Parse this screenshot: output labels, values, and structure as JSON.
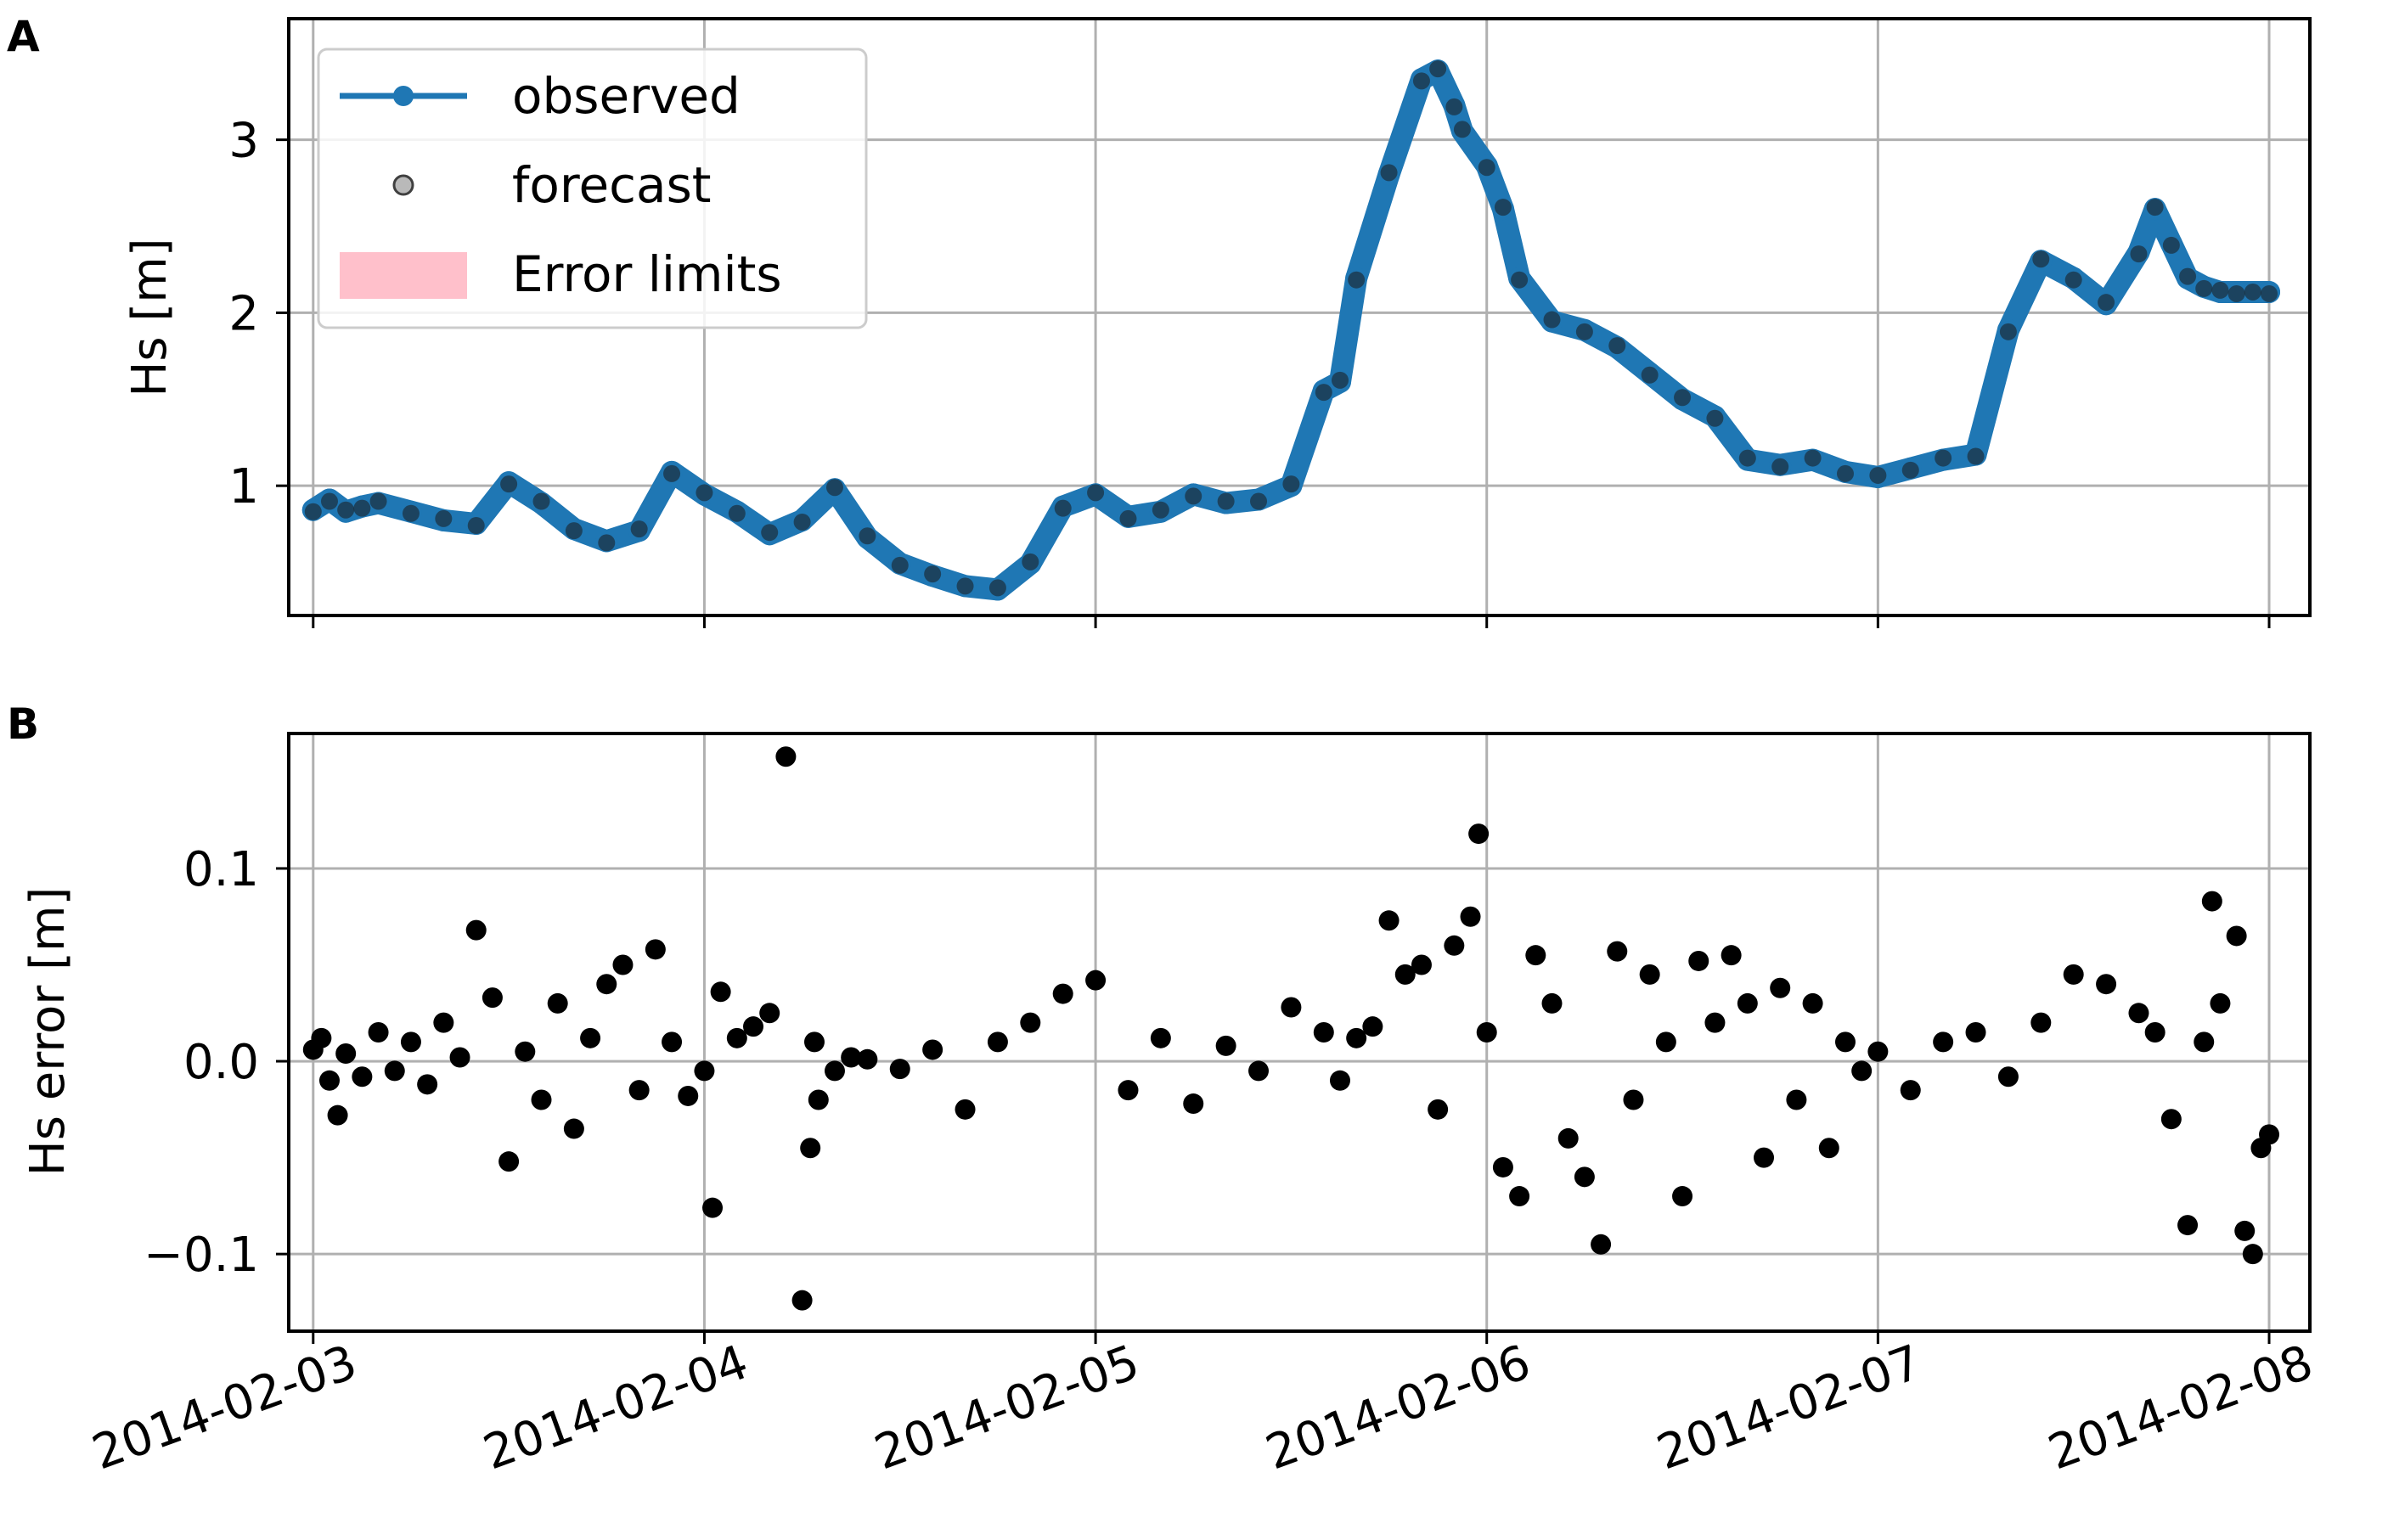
{
  "chart_data": [
    {
      "panel_label": "A",
      "type": "line",
      "ylabel": "Hs [m]",
      "xlim": [
        "2014-02-02 22:30",
        "2014-02-08 02:30"
      ],
      "ylim": [
        0.25,
        3.7
      ],
      "yticks": [
        1,
        2,
        3
      ],
      "ytick_labels": [
        "1",
        "2",
        "3"
      ],
      "grid": true,
      "legend": {
        "placement": "top-left",
        "entries": [
          {
            "label": "observed",
            "style": "line-marker",
            "color": "#1f77b4"
          },
          {
            "label": "forecast",
            "style": "marker",
            "color": "#808080"
          },
          {
            "label": "Error limits",
            "style": "patch",
            "color": "#ffc0cb"
          }
        ]
      },
      "x": [
        "2014-02-03 00:00",
        "2014-02-03 01:00",
        "2014-02-03 02:00",
        "2014-02-03 03:00",
        "2014-02-03 04:00",
        "2014-02-03 06:00",
        "2014-02-03 08:00",
        "2014-02-03 10:00",
        "2014-02-03 12:00",
        "2014-02-03 14:00",
        "2014-02-03 16:00",
        "2014-02-03 18:00",
        "2014-02-03 20:00",
        "2014-02-03 22:00",
        "2014-02-04 00:00",
        "2014-02-04 02:00",
        "2014-02-04 04:00",
        "2014-02-04 06:00",
        "2014-02-04 08:00",
        "2014-02-04 10:00",
        "2014-02-04 12:00",
        "2014-02-04 14:00",
        "2014-02-04 16:00",
        "2014-02-04 18:00",
        "2014-02-04 20:00",
        "2014-02-04 22:00",
        "2014-02-05 00:00",
        "2014-02-05 02:00",
        "2014-02-05 04:00",
        "2014-02-05 06:00",
        "2014-02-05 08:00",
        "2014-02-05 10:00",
        "2014-02-05 12:00",
        "2014-02-05 14:00",
        "2014-02-05 15:00",
        "2014-02-05 16:00",
        "2014-02-05 18:00",
        "2014-02-05 20:00",
        "2014-02-05 21:00",
        "2014-02-05 22:00",
        "2014-02-05 22:30",
        "2014-02-06 00:00",
        "2014-02-06 01:00",
        "2014-02-06 02:00",
        "2014-02-06 04:00",
        "2014-02-06 06:00",
        "2014-02-06 08:00",
        "2014-02-06 10:00",
        "2014-02-06 12:00",
        "2014-02-06 14:00",
        "2014-02-06 16:00",
        "2014-02-06 18:00",
        "2014-02-06 20:00",
        "2014-02-06 22:00",
        "2014-02-07 00:00",
        "2014-02-07 02:00",
        "2014-02-07 04:00",
        "2014-02-07 06:00",
        "2014-02-07 08:00",
        "2014-02-07 10:00",
        "2014-02-07 12:00",
        "2014-02-07 14:00",
        "2014-02-07 16:00",
        "2014-02-07 17:00",
        "2014-02-07 18:00",
        "2014-02-07 19:00",
        "2014-02-07 20:00",
        "2014-02-07 21:00",
        "2014-02-07 22:00",
        "2014-02-07 23:00",
        "2014-02-08 00:00"
      ],
      "series": [
        {
          "name": "observed",
          "color": "#1f77b4",
          "values": [
            0.86,
            0.92,
            0.85,
            0.88,
            0.9,
            0.85,
            0.8,
            0.78,
            1.02,
            0.9,
            0.75,
            0.68,
            0.74,
            1.08,
            0.95,
            0.85,
            0.72,
            0.8,
            0.98,
            0.7,
            0.55,
            0.48,
            0.42,
            0.4,
            0.55,
            0.88,
            0.95,
            0.82,
            0.85,
            0.95,
            0.9,
            0.92,
            1.0,
            1.55,
            1.6,
            2.2,
            2.8,
            3.35,
            3.4,
            3.2,
            3.05,
            2.85,
            2.6,
            2.2,
            1.95,
            1.9,
            1.8,
            1.65,
            1.5,
            1.4,
            1.15,
            1.12,
            1.15,
            1.08,
            1.05,
            1.1,
            1.15,
            1.18,
            1.9,
            2.3,
            2.2,
            2.05,
            2.35,
            2.6,
            2.4,
            2.2,
            2.15,
            2.12,
            2.12,
            2.12,
            2.12
          ]
        },
        {
          "name": "forecast",
          "color": "#808080",
          "values": [
            0.85,
            0.91,
            0.86,
            0.87,
            0.91,
            0.84,
            0.81,
            0.77,
            1.01,
            0.91,
            0.74,
            0.67,
            0.75,
            1.07,
            0.96,
            0.84,
            0.73,
            0.79,
            0.99,
            0.71,
            0.54,
            0.49,
            0.42,
            0.41,
            0.56,
            0.87,
            0.96,
            0.81,
            0.86,
            0.94,
            0.91,
            0.91,
            1.01,
            1.54,
            1.61,
            2.19,
            2.81,
            3.34,
            3.41,
            3.19,
            3.06,
            2.84,
            2.61,
            2.19,
            1.96,
            1.89,
            1.81,
            1.64,
            1.51,
            1.39,
            1.16,
            1.11,
            1.16,
            1.07,
            1.06,
            1.09,
            1.16,
            1.17,
            1.89,
            2.31,
            2.19,
            2.06,
            2.34,
            2.61,
            2.39,
            2.21,
            2.14,
            2.13,
            2.11,
            2.12,
            2.11
          ]
        }
      ]
    },
    {
      "panel_label": "B",
      "type": "scatter",
      "ylabel": "Hs error [m]",
      "xlim": [
        "2014-02-02 22:30",
        "2014-02-08 02:30"
      ],
      "ylim": [
        -0.14,
        0.17
      ],
      "yticks": [
        -0.1,
        0.0,
        0.1
      ],
      "ytick_labels": [
        "−0.1",
        "0.0",
        "0.1"
      ],
      "xticks": [
        "2014-02-03",
        "2014-02-04",
        "2014-02-05",
        "2014-02-06",
        "2014-02-07",
        "2014-02-08"
      ],
      "xtick_labels": [
        "2014-02-03",
        "2014-02-04",
        "2014-02-05",
        "2014-02-06",
        "2014-02-07",
        "2014-02-08"
      ],
      "grid": true,
      "series": [
        {
          "name": "",
          "color": "#000000",
          "x": [
            "2014-02-03 00:00",
            "2014-02-03 00:30",
            "2014-02-03 01:00",
            "2014-02-03 01:30",
            "2014-02-03 02:00",
            "2014-02-03 03:00",
            "2014-02-03 04:00",
            "2014-02-03 05:00",
            "2014-02-03 06:00",
            "2014-02-03 07:00",
            "2014-02-03 08:00",
            "2014-02-03 09:00",
            "2014-02-03 10:00",
            "2014-02-03 11:00",
            "2014-02-03 12:00",
            "2014-02-03 13:00",
            "2014-02-03 14:00",
            "2014-02-03 15:00",
            "2014-02-03 16:00",
            "2014-02-03 17:00",
            "2014-02-03 18:00",
            "2014-02-03 19:00",
            "2014-02-03 20:00",
            "2014-02-03 21:00",
            "2014-02-03 22:00",
            "2014-02-03 23:00",
            "2014-02-04 00:00",
            "2014-02-04 00:30",
            "2014-02-04 01:00",
            "2014-02-04 02:00",
            "2014-02-04 03:00",
            "2014-02-04 04:00",
            "2014-02-04 05:00",
            "2014-02-04 06:00",
            "2014-02-04 06:30",
            "2014-02-04 06:45",
            "2014-02-04 07:00",
            "2014-02-04 08:00",
            "2014-02-04 09:00",
            "2014-02-04 10:00",
            "2014-02-04 12:00",
            "2014-02-04 14:00",
            "2014-02-04 16:00",
            "2014-02-04 18:00",
            "2014-02-04 20:00",
            "2014-02-04 22:00",
            "2014-02-05 00:00",
            "2014-02-05 02:00",
            "2014-02-05 04:00",
            "2014-02-05 06:00",
            "2014-02-05 08:00",
            "2014-02-05 10:00",
            "2014-02-05 12:00",
            "2014-02-05 14:00",
            "2014-02-05 15:00",
            "2014-02-05 16:00",
            "2014-02-05 17:00",
            "2014-02-05 18:00",
            "2014-02-05 19:00",
            "2014-02-05 20:00",
            "2014-02-05 21:00",
            "2014-02-05 22:00",
            "2014-02-05 23:00",
            "2014-02-05 23:30",
            "2014-02-06 00:00",
            "2014-02-06 01:00",
            "2014-02-06 02:00",
            "2014-02-06 03:00",
            "2014-02-06 04:00",
            "2014-02-06 05:00",
            "2014-02-06 06:00",
            "2014-02-06 07:00",
            "2014-02-06 08:00",
            "2014-02-06 09:00",
            "2014-02-06 10:00",
            "2014-02-06 11:00",
            "2014-02-06 12:00",
            "2014-02-06 13:00",
            "2014-02-06 14:00",
            "2014-02-06 15:00",
            "2014-02-06 16:00",
            "2014-02-06 17:00",
            "2014-02-06 18:00",
            "2014-02-06 19:00",
            "2014-02-06 20:00",
            "2014-02-06 21:00",
            "2014-02-06 22:00",
            "2014-02-06 23:00",
            "2014-02-07 00:00",
            "2014-02-07 02:00",
            "2014-02-07 04:00",
            "2014-02-07 06:00",
            "2014-02-07 08:00",
            "2014-02-07 10:00",
            "2014-02-07 12:00",
            "2014-02-07 14:00",
            "2014-02-07 16:00",
            "2014-02-07 17:00",
            "2014-02-07 18:00",
            "2014-02-07 19:00",
            "2014-02-07 20:00",
            "2014-02-07 20:30",
            "2014-02-07 21:00",
            "2014-02-07 22:00",
            "2014-02-07 22:30",
            "2014-02-07 23:00",
            "2014-02-07 23:30",
            "2014-02-08 00:00"
          ],
          "y": [
            0.006,
            0.012,
            -0.01,
            -0.028,
            0.004,
            -0.008,
            0.015,
            -0.005,
            0.01,
            -0.012,
            0.02,
            0.002,
            0.068,
            0.033,
            -0.052,
            0.005,
            -0.02,
            0.03,
            -0.035,
            0.012,
            0.04,
            0.05,
            -0.015,
            0.058,
            0.01,
            -0.018,
            -0.005,
            -0.076,
            0.036,
            0.012,
            0.018,
            0.025,
            0.158,
            -0.124,
            -0.045,
            0.01,
            -0.02,
            -0.005,
            0.002,
            0.001,
            -0.004,
            0.006,
            -0.025,
            0.01,
            0.02,
            0.035,
            0.042,
            -0.015,
            0.012,
            -0.022,
            0.008,
            -0.005,
            0.028,
            0.015,
            -0.01,
            0.012,
            0.018,
            0.073,
            0.045,
            0.05,
            -0.025,
            0.06,
            0.075,
            0.118,
            0.015,
            -0.055,
            -0.07,
            0.055,
            0.03,
            -0.04,
            -0.06,
            -0.095,
            0.057,
            -0.02,
            0.045,
            0.01,
            -0.07,
            0.052,
            0.02,
            0.055,
            0.03,
            -0.05,
            0.038,
            -0.02,
            0.03,
            -0.045,
            0.01,
            -0.005,
            0.005,
            -0.015,
            0.01,
            0.015,
            -0.008,
            0.02,
            0.045,
            0.04,
            0.025,
            0.015,
            -0.03,
            -0.085,
            0.01,
            0.083,
            0.03,
            0.065,
            -0.088,
            -0.1,
            -0.045,
            -0.038
          ]
        }
      ]
    }
  ]
}
